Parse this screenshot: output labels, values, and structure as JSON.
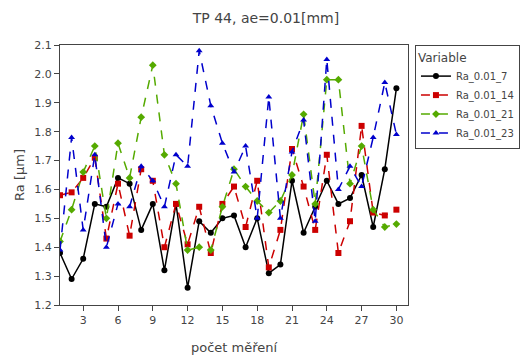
{
  "chart_data": {
    "type": "line",
    "title": "TP 44, ae=0.01[mm]",
    "xlabel": "počet měření",
    "ylabel": "Ra [µm]",
    "xlim": [
      1,
      31
    ],
    "ylim": [
      1.2,
      2.1
    ],
    "xticks": [
      3,
      6,
      9,
      12,
      15,
      18,
      21,
      24,
      27,
      30
    ],
    "yticks": [
      {
        "value": 1.2,
        "label": "1.2"
      },
      {
        "value": 1.3,
        "label": "1.3"
      },
      {
        "value": 1.4,
        "label": "1.4"
      },
      {
        "value": 1.5,
        "label": "1.5"
      },
      {
        "value": 1.6,
        "label": "1.6"
      },
      {
        "value": 1.7,
        "label": "1.7"
      },
      {
        "value": 1.8,
        "label": "1.8"
      },
      {
        "value": 1.9,
        "label": "1.9"
      },
      {
        "value": 2.0,
        "label": "2.0"
      },
      {
        "value": 2.1,
        "label": "2.1"
      }
    ],
    "grid": false,
    "legend": "right",
    "legend_title": "Variable",
    "x": [
      1,
      2,
      3,
      4,
      5,
      6,
      7,
      8,
      9,
      10,
      11,
      12,
      13,
      14,
      15,
      16,
      17,
      18,
      19,
      20,
      21,
      22,
      23,
      24,
      25,
      26,
      27,
      28,
      29,
      30
    ],
    "series": [
      {
        "name": "Ra_0.01_7",
        "color": "#000000",
        "line_style": "solid",
        "marker": "circle",
        "values": [
          1.38,
          1.29,
          1.36,
          1.55,
          1.54,
          1.64,
          1.62,
          1.46,
          1.55,
          1.32,
          1.55,
          1.26,
          1.49,
          1.45,
          1.5,
          1.51,
          1.4,
          1.5,
          1.31,
          1.34,
          1.63,
          1.45,
          1.54,
          1.63,
          1.55,
          1.57,
          1.65,
          1.47,
          1.67,
          1.95
        ]
      },
      {
        "name": "Ra_0.01_14",
        "color": "#cc0000",
        "line_style": "dash",
        "marker": "square",
        "values": [
          1.58,
          1.59,
          1.64,
          1.71,
          1.43,
          1.62,
          1.44,
          1.67,
          1.63,
          1.4,
          1.55,
          1.41,
          1.54,
          1.38,
          1.55,
          1.61,
          1.47,
          1.63,
          1.33,
          1.46,
          1.74,
          1.61,
          1.46,
          1.72,
          1.38,
          1.49,
          1.82,
          1.52,
          1.51,
          1.53
        ]
      },
      {
        "name": "Ra_0.01_21",
        "color": "#55aa00",
        "line_style": "dash",
        "marker": "diamond",
        "values": [
          1.42,
          1.53,
          1.66,
          1.75,
          1.5,
          1.76,
          1.64,
          1.85,
          2.03,
          1.72,
          1.62,
          1.39,
          1.4,
          1.39,
          1.54,
          1.67,
          1.61,
          1.56,
          1.52,
          1.56,
          1.65,
          1.86,
          1.55,
          1.98,
          1.98,
          1.62,
          1.75,
          1.53,
          1.47,
          1.48
        ]
      },
      {
        "name": "Ra_0.01_23",
        "color": "#0000cc",
        "line_style": "dash",
        "marker": "triangle-up",
        "values": [
          1.39,
          1.78,
          1.46,
          1.72,
          1.4,
          1.55,
          1.54,
          1.68,
          1.63,
          1.54,
          1.72,
          1.68,
          2.08,
          1.89,
          1.76,
          1.66,
          1.75,
          1.5,
          1.92,
          1.5,
          1.73,
          1.84,
          1.49,
          2.05,
          1.6,
          1.68,
          1.61,
          1.78,
          1.97,
          1.79
        ]
      }
    ]
  }
}
